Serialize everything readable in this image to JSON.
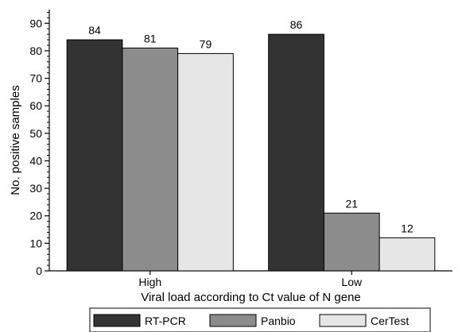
{
  "chart_data": {
    "type": "bar",
    "categories": [
      "High",
      "Low"
    ],
    "series": [
      {
        "name": "RT-PCR",
        "values": [
          84,
          86
        ],
        "color": "#333333"
      },
      {
        "name": "Panbio",
        "values": [
          81,
          21
        ],
        "color": "#8c8c8c"
      },
      {
        "name": "CerTest",
        "values": [
          79,
          12
        ],
        "color": "#e6e6e6"
      }
    ],
    "xlabel": "Viral load according to Ct value of N gene",
    "ylabel": "No. positive samples",
    "ylim": [
      0,
      95
    ],
    "yticks": [
      0,
      10,
      20,
      30,
      40,
      50,
      60,
      70,
      80,
      90
    ],
    "grid": false,
    "legend_position": "bottom"
  }
}
